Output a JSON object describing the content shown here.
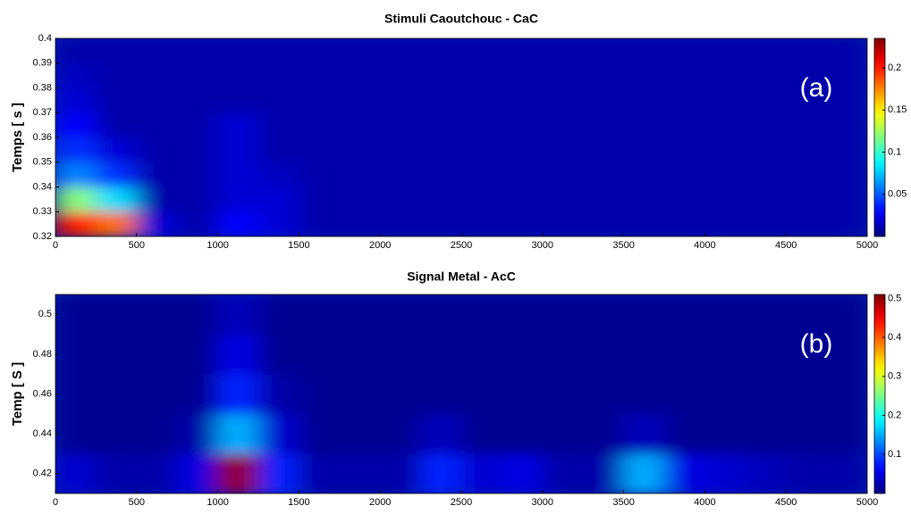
{
  "chart_data": [
    {
      "type": "heatmap",
      "title": "Stimuli Caoutchouc  -  CaC",
      "y_label": "Temps [ s ]",
      "annotation": "(a)",
      "x": [
        125,
        375,
        625,
        875,
        1125,
        1375,
        1625,
        1875,
        2125,
        2375,
        2625,
        2875,
        3125,
        3375,
        3625,
        3875,
        4125,
        4375,
        4625,
        4875
      ],
      "y": [
        0.325,
        0.335,
        0.345,
        0.355,
        0.365,
        0.375,
        0.385,
        0.395
      ],
      "z": [
        [
          0.2,
          0.18,
          0.02,
          0.01,
          0.03,
          0.02,
          0.01,
          0.01,
          0.01,
          0.01,
          0.01,
          0.01,
          0.01,
          0.01,
          0.01,
          0.01,
          0.01,
          0.01,
          0.01,
          0.01
        ],
        [
          0.12,
          0.08,
          0.01,
          0.01,
          0.02,
          0.02,
          0.01,
          0.01,
          0.01,
          0.01,
          0.01,
          0.01,
          0.01,
          0.01,
          0.01,
          0.01,
          0.01,
          0.01,
          0.01,
          0.01
        ],
        [
          0.06,
          0.04,
          0.01,
          0.01,
          0.02,
          0.015,
          0.01,
          0.01,
          0.01,
          0.01,
          0.01,
          0.01,
          0.01,
          0.01,
          0.01,
          0.01,
          0.01,
          0.01,
          0.01,
          0.01
        ],
        [
          0.04,
          0.02,
          0.01,
          0.01,
          0.02,
          0.01,
          0.01,
          0.01,
          0.01,
          0.01,
          0.01,
          0.01,
          0.01,
          0.01,
          0.01,
          0.01,
          0.01,
          0.01,
          0.01,
          0.01
        ],
        [
          0.03,
          0.01,
          0.01,
          0.01,
          0.02,
          0.01,
          0.01,
          0.01,
          0.01,
          0.01,
          0.01,
          0.01,
          0.01,
          0.01,
          0.01,
          0.01,
          0.01,
          0.01,
          0.01,
          0.01
        ],
        [
          0.02,
          0.01,
          0.01,
          0.01,
          0.01,
          0.01,
          0.01,
          0.01,
          0.01,
          0.01,
          0.01,
          0.01,
          0.01,
          0.01,
          0.01,
          0.01,
          0.01,
          0.01,
          0.01,
          0.01
        ],
        [
          0.015,
          0.01,
          0.01,
          0.01,
          0.01,
          0.01,
          0.01,
          0.01,
          0.01,
          0.01,
          0.01,
          0.01,
          0.01,
          0.01,
          0.01,
          0.01,
          0.01,
          0.01,
          0.01,
          0.01
        ],
        [
          0.01,
          0.01,
          0.01,
          0.01,
          0.01,
          0.01,
          0.01,
          0.01,
          0.01,
          0.01,
          0.01,
          0.01,
          0.01,
          0.01,
          0.01,
          0.01,
          0.01,
          0.01,
          0.01,
          0.01
        ]
      ],
      "xlim": [
        0,
        5000
      ],
      "xticks": [
        0,
        500,
        1000,
        1500,
        2000,
        2500,
        3000,
        3500,
        4000,
        4500,
        5000
      ],
      "ylim": [
        0.32,
        0.4
      ],
      "yticks": [
        0.32,
        0.33,
        0.34,
        0.35,
        0.36,
        0.37,
        0.38,
        0.39,
        0.4
      ],
      "clim": [
        0,
        0.235
      ],
      "cticks": [
        0.05,
        0.1,
        0.15,
        0.2
      ],
      "colormap": "jet"
    },
    {
      "type": "heatmap",
      "title": "Signal Metal - AcC",
      "y_label": "Temp [ S ]",
      "annotation": "(b)",
      "x": [
        125,
        375,
        625,
        875,
        1125,
        1375,
        1625,
        1875,
        2125,
        2375,
        2625,
        2875,
        3125,
        3375,
        3625,
        3875,
        4125,
        4375,
        4625,
        4875
      ],
      "y": [
        0.42,
        0.44,
        0.46,
        0.48,
        0.5
      ],
      "z": [
        [
          0.04,
          0.02,
          0.02,
          0.05,
          0.5,
          0.08,
          0.02,
          0.02,
          0.02,
          0.08,
          0.04,
          0.05,
          0.02,
          0.02,
          0.15,
          0.05,
          0.04,
          0.03,
          0.02,
          0.02
        ],
        [
          0.01,
          0.01,
          0.01,
          0.02,
          0.15,
          0.04,
          0.01,
          0.01,
          0.01,
          0.03,
          0.01,
          0.01,
          0.01,
          0.01,
          0.03,
          0.01,
          0.01,
          0.01,
          0.01,
          0.01
        ],
        [
          0.01,
          0.01,
          0.01,
          0.01,
          0.08,
          0.02,
          0.01,
          0.01,
          0.01,
          0.01,
          0.01,
          0.01,
          0.01,
          0.01,
          0.01,
          0.01,
          0.01,
          0.01,
          0.01,
          0.01
        ],
        [
          0.01,
          0.01,
          0.01,
          0.01,
          0.05,
          0.01,
          0.01,
          0.01,
          0.01,
          0.01,
          0.01,
          0.01,
          0.01,
          0.01,
          0.01,
          0.01,
          0.01,
          0.01,
          0.01,
          0.01
        ],
        [
          0.01,
          0.01,
          0.01,
          0.01,
          0.03,
          0.01,
          0.01,
          0.01,
          0.01,
          0.01,
          0.01,
          0.01,
          0.01,
          0.01,
          0.01,
          0.01,
          0.01,
          0.01,
          0.01,
          0.01
        ]
      ],
      "xlim": [
        0,
        5000
      ],
      "xticks": [
        0,
        500,
        1000,
        1500,
        2000,
        2500,
        3000,
        3500,
        4000,
        4500,
        5000
      ],
      "ylim": [
        0.41,
        0.51
      ],
      "yticks": [
        0.42,
        0.44,
        0.46,
        0.48,
        0.5
      ],
      "clim": [
        0,
        0.51
      ],
      "cticks": [
        0.1,
        0.2,
        0.3,
        0.4,
        0.5
      ],
      "colormap": "jet"
    }
  ]
}
